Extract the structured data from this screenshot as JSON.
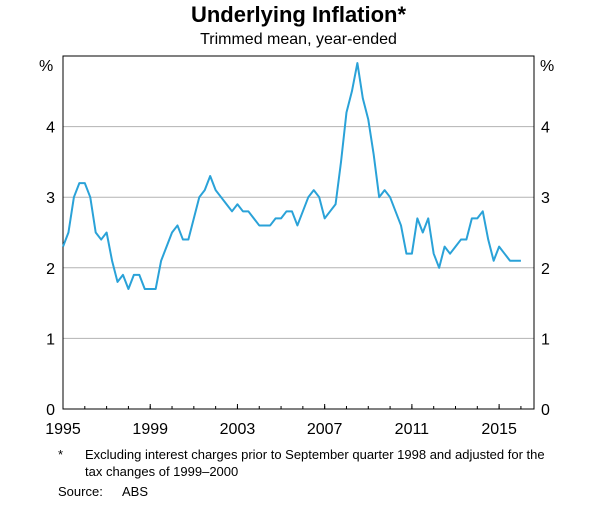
{
  "chart_data": {
    "type": "line",
    "title": "Underlying Inflation*",
    "subtitle": "Trimmed mean, year-ended",
    "ylabel_left": "%",
    "ylabel_right": "%",
    "ylim": [
      0,
      5
    ],
    "yticks": [
      "0",
      "1",
      "2",
      "3",
      "4"
    ],
    "xlim": [
      1995.0,
      2016.6
    ],
    "xticks": [
      "1995",
      "1999",
      "2003",
      "2007",
      "2011",
      "2015"
    ],
    "grid": true,
    "line_color": "#2aa2d8",
    "series": [
      {
        "x": [
          1995.0,
          1995.25,
          1995.5,
          1995.75,
          1996.0,
          1996.25,
          1996.5,
          1996.75,
          1997.0,
          1997.25,
          1997.5,
          1997.75,
          1998.0,
          1998.25,
          1998.5,
          1998.75,
          1999.0,
          1999.25,
          1999.5,
          1999.75,
          2000.0,
          2000.25,
          2000.5,
          2000.75,
          2001.0,
          2001.25,
          2001.5,
          2001.75,
          2002.0,
          2002.25,
          2002.5,
          2002.75,
          2003.0,
          2003.25,
          2003.5,
          2003.75,
          2004.0,
          2004.25,
          2004.5,
          2004.75,
          2005.0,
          2005.25,
          2005.5,
          2005.75,
          2006.0,
          2006.25,
          2006.5,
          2006.75,
          2007.0,
          2007.25,
          2007.5,
          2007.75,
          2008.0,
          2008.25,
          2008.5,
          2008.75,
          2009.0,
          2009.25,
          2009.5,
          2009.75,
          2010.0,
          2010.25,
          2010.5,
          2010.75,
          2011.0,
          2011.25,
          2011.5,
          2011.75,
          2012.0,
          2012.25,
          2012.5,
          2012.75,
          2013.0,
          2013.25,
          2013.5,
          2013.75,
          2014.0,
          2014.25,
          2014.5,
          2014.75,
          2015.0,
          2015.25,
          2015.5,
          2015.75,
          2016.0
        ],
        "y": [
          2.3,
          2.5,
          3.0,
          3.2,
          3.2,
          3.0,
          2.5,
          2.4,
          2.5,
          2.1,
          1.8,
          1.9,
          1.7,
          1.9,
          1.9,
          1.7,
          1.7,
          1.7,
          2.1,
          2.3,
          2.5,
          2.6,
          2.4,
          2.4,
          2.7,
          3.0,
          3.1,
          3.3,
          3.1,
          3.0,
          2.9,
          2.8,
          2.9,
          2.8,
          2.8,
          2.7,
          2.6,
          2.6,
          2.6,
          2.7,
          2.7,
          2.8,
          2.8,
          2.6,
          2.8,
          3.0,
          3.1,
          3.0,
          2.7,
          2.8,
          2.9,
          3.5,
          4.2,
          4.5,
          4.9,
          4.4,
          4.1,
          3.6,
          3.0,
          3.1,
          3.0,
          2.8,
          2.6,
          2.2,
          2.2,
          2.7,
          2.5,
          2.7,
          2.2,
          2.0,
          2.3,
          2.2,
          2.3,
          2.4,
          2.4,
          2.7,
          2.7,
          2.8,
          2.4,
          2.1,
          2.3,
          2.2,
          2.1,
          2.1,
          2.1
        ]
      }
    ]
  },
  "footnote": {
    "mark": "*",
    "text": "Excluding interest charges prior to September quarter 1998 and adjusted for the tax changes of 1999–2000"
  },
  "source": {
    "label": "Source:",
    "value": "ABS"
  }
}
